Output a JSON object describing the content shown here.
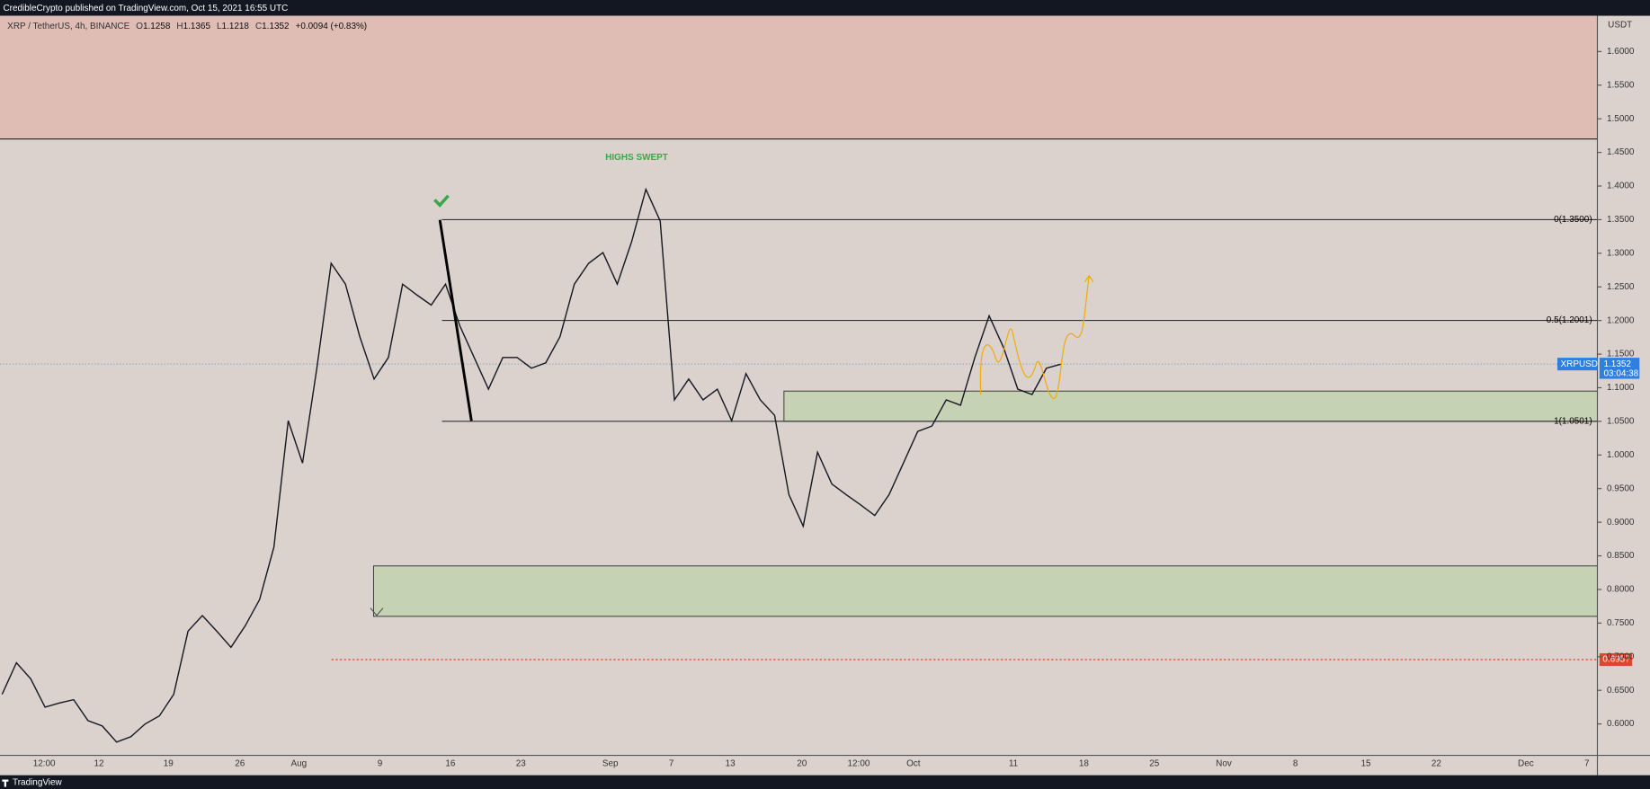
{
  "header": {
    "publisher": "CredibleCrypto published on TradingView.com, Oct 15, 2021 16:55 UTC"
  },
  "legend": {
    "symbol": "XRP / TetherUS, 4h, BINANCE",
    "ohlc": [
      {
        "key": "O",
        "value": "1.1258"
      },
      {
        "key": "H",
        "value": "1.1365"
      },
      {
        "key": "L",
        "value": "1.1218"
      },
      {
        "key": "C",
        "value": "1.1352"
      }
    ],
    "change": "+0.0094 (+0.83%)"
  },
  "price_chart": {
    "currency": "USDT",
    "ylim": [
      0.5533,
      1.6532
    ],
    "yticks": [
      {
        "value": 0.6,
        "label": "0.6000"
      },
      {
        "value": 0.65,
        "label": "0.6500"
      },
      {
        "value": 0.7,
        "label": "0.7000"
      },
      {
        "value": 0.75,
        "label": "0.7500"
      },
      {
        "value": 0.8,
        "label": "0.8000"
      },
      {
        "value": 0.85,
        "label": "0.8500"
      },
      {
        "value": 0.9,
        "label": "0.9000"
      },
      {
        "value": 0.95,
        "label": "0.9500"
      },
      {
        "value": 1.0,
        "label": "1.0000"
      },
      {
        "value": 1.05,
        "label": "1.0500"
      },
      {
        "value": 1.1,
        "label": "1.1000"
      },
      {
        "value": 1.15,
        "label": "1.1500"
      },
      {
        "value": 1.2,
        "label": "1.2000"
      },
      {
        "value": 1.25,
        "label": "1.2500"
      },
      {
        "value": 1.3,
        "label": "1.3000"
      },
      {
        "value": 1.35,
        "label": "1.3500"
      },
      {
        "value": 1.4,
        "label": "1.4000"
      },
      {
        "value": 1.45,
        "label": "1.4500"
      },
      {
        "value": 1.5,
        "label": "1.5000"
      },
      {
        "value": 1.55,
        "label": "1.5500"
      },
      {
        "value": 1.6,
        "label": "1.6000"
      }
    ],
    "time_labels": [
      "12:00",
      "12",
      "19",
      "26",
      "Aug",
      "9",
      "16",
      "23",
      "Sep",
      "7",
      "13",
      "20",
      "12:00",
      "Oct",
      "11",
      "18",
      "25",
      "Nov",
      "8",
      "15",
      "22",
      "Dec",
      "7"
    ],
    "price_series": {
      "name": "XRPUSDT",
      "color": "#131722",
      "values": [
        0.644,
        0.691,
        0.667,
        0.625,
        0.631,
        0.636,
        0.605,
        0.597,
        0.573,
        0.581,
        0.6,
        0.612,
        0.644,
        0.738,
        0.761,
        0.738,
        0.714,
        0.746,
        0.785,
        0.863,
        1.051,
        0.988,
        1.129,
        1.285,
        1.254,
        1.176,
        1.113,
        1.145,
        1.254,
        1.238,
        1.223,
        1.254,
        1.192,
        1.145,
        1.098,
        1.145,
        1.145,
        1.129,
        1.137,
        1.176,
        1.254,
        1.285,
        1.301,
        1.254,
        1.317,
        1.395,
        1.348,
        1.082,
        1.113,
        1.082,
        1.098,
        1.051,
        1.121,
        1.082,
        1.059,
        0.941,
        0.894,
        1.004,
        0.957,
        0.941,
        0.926,
        0.91,
        0.941,
        0.988,
        1.035,
        1.043,
        1.082,
        1.074,
        1.145,
        1.207,
        1.16,
        1.098,
        1.09,
        1.129,
        1.135
      ]
    },
    "supply_zone_low": 1.47,
    "demand_zones": [
      {
        "high": 1.095,
        "low": 1.05
      },
      {
        "high": 0.835,
        "low": 0.76
      }
    ],
    "fib_levels": [
      {
        "label": "0(1.3500)",
        "value": 1.35
      },
      {
        "label": "0.5(1.2001)",
        "value": 1.2001
      },
      {
        "label": "1(1.0501)",
        "value": 1.0501
      }
    ],
    "annotation": "HIGHS SWEPT",
    "marked_level": {
      "value": 0.6957,
      "label": "0.6957"
    },
    "last_price": {
      "symbol": "XRPUSDT",
      "value": 1.1352,
      "label": "1.1352",
      "countdown": "03:04:38"
    }
  },
  "footer": {
    "brand": "TradingView"
  }
}
